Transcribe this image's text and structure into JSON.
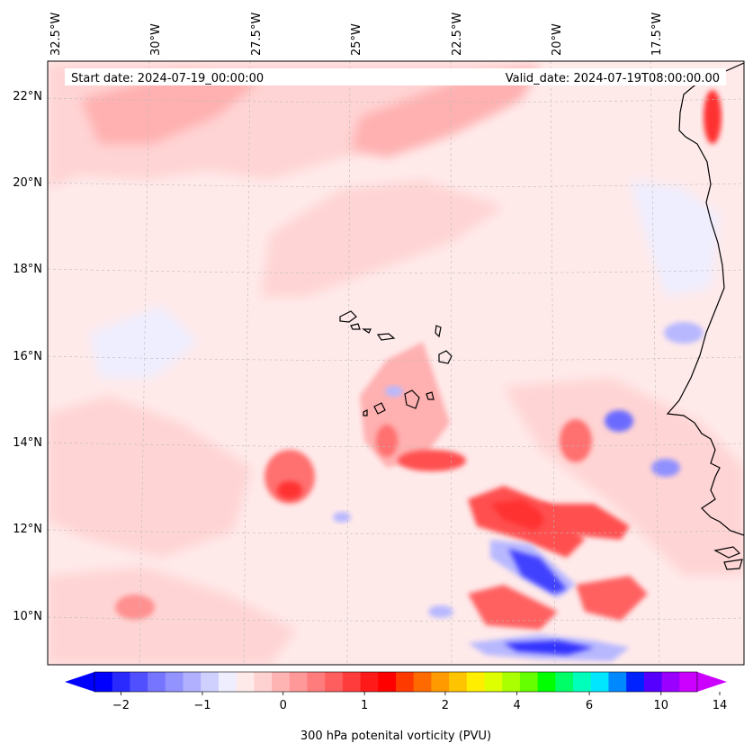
{
  "header": {
    "start_date": "Start date: 2024-07-19_00:00:00",
    "valid_date": "Valid_date: 2024-07-19T08:00:00.00"
  },
  "axes": {
    "lon_labels": [
      "32.5°W",
      "30°W",
      "27.5°W",
      "25°W",
      "22.5°W",
      "20°W",
      "17.5°W"
    ],
    "lat_labels": [
      "22°N",
      "20°N",
      "18°N",
      "16°N",
      "14°N",
      "12°N",
      "10°N"
    ]
  },
  "colorbar": {
    "title": "300 hPa potenital vorticity (PVU)",
    "tick_labels": [
      "−2",
      "−1",
      "0",
      "1",
      "2",
      "4",
      "6",
      "10",
      "14"
    ],
    "colors": [
      "#0000ff",
      "#2a2aff",
      "#5050ff",
      "#7575ff",
      "#9393ff",
      "#b0b0ff",
      "#d0d0ff",
      "#eeeeff",
      "#ffeaea",
      "#ffd2d2",
      "#ffb4b4",
      "#ff9898",
      "#ff7c7c",
      "#ff5e5e",
      "#ff3c3c",
      "#ff1a1a",
      "#ff0000",
      "#ff3a00",
      "#ff6a00",
      "#ff9a00",
      "#ffc400",
      "#ffee00",
      "#ddff00",
      "#aaff00",
      "#66ff00",
      "#00ff00",
      "#00ff66",
      "#00ffbb",
      "#00e6ff",
      "#0088ff",
      "#0022ff",
      "#5500ff",
      "#9900ff",
      "#cc00ff"
    ],
    "under_color": "#0000ff",
    "over_color": "#cc00ff"
  },
  "field": {
    "background": "#ffeaea",
    "light_pink": "#ffd4d4",
    "mid_pink": "#ffb0b0",
    "red_mid": "#ff7070",
    "red_core": "#ff3030",
    "light_blue": "#eeeeff",
    "mid_blue": "#b8b8ff",
    "blue_core": "#4040ff",
    "coast": "#000000"
  }
}
